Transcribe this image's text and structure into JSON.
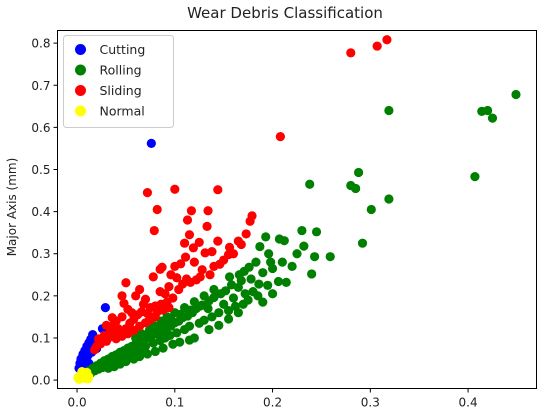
{
  "chart_data": {
    "type": "scatter",
    "title": "Wear Debris Classification",
    "xlabel": "",
    "ylabel": "Major Axis (mm)",
    "xlim": [
      -0.02,
      0.47
    ],
    "ylim": [
      -0.02,
      0.83
    ],
    "xticks": [
      0.0,
      0.1,
      0.2,
      0.3,
      0.4
    ],
    "xtick_labels": [
      "0.0",
      "0.1",
      "0.2",
      "0.3",
      "0.4"
    ],
    "yticks": [
      0.0,
      0.1,
      0.2,
      0.3,
      0.4,
      0.5,
      0.6,
      0.7,
      0.8
    ],
    "ytick_labels": [
      "0.0",
      "0.1",
      "0.2",
      "0.3",
      "0.4",
      "0.5",
      "0.6",
      "0.7",
      "0.8"
    ],
    "grid": false,
    "legend": "top-left",
    "series": [
      {
        "name": "Cutting",
        "color": "#0000ff",
        "points": [
          [
            0.076,
            0.562
          ],
          [
            0.029,
            0.172
          ],
          [
            0.026,
            0.122
          ],
          [
            0.016,
            0.108
          ],
          [
            0.014,
            0.097
          ],
          [
            0.012,
            0.088
          ],
          [
            0.018,
            0.092
          ],
          [
            0.01,
            0.08
          ],
          [
            0.008,
            0.07
          ],
          [
            0.006,
            0.061
          ],
          [
            0.004,
            0.05
          ],
          [
            0.011,
            0.058
          ],
          [
            0.003,
            0.04
          ],
          [
            0.007,
            0.045
          ],
          [
            0.02,
            0.075
          ],
          [
            0.015,
            0.066
          ],
          [
            0.009,
            0.052
          ],
          [
            0.013,
            0.074
          ],
          [
            0.005,
            0.032
          ],
          [
            0.017,
            0.082
          ],
          [
            0.002,
            0.028
          ],
          [
            0.022,
            0.09
          ],
          [
            0.012,
            0.04
          ]
        ]
      },
      {
        "name": "Rolling",
        "color": "#008000",
        "points": [
          [
            0.449,
            0.678
          ],
          [
            0.414,
            0.638
          ],
          [
            0.42,
            0.64
          ],
          [
            0.425,
            0.622
          ],
          [
            0.407,
            0.483
          ],
          [
            0.319,
            0.64
          ],
          [
            0.319,
            0.43
          ],
          [
            0.288,
            0.493
          ],
          [
            0.28,
            0.462
          ],
          [
            0.285,
            0.455
          ],
          [
            0.301,
            0.405
          ],
          [
            0.292,
            0.325
          ],
          [
            0.238,
            0.465
          ],
          [
            0.245,
            0.352
          ],
          [
            0.23,
            0.355
          ],
          [
            0.259,
            0.293
          ],
          [
            0.243,
            0.293
          ],
          [
            0.24,
            0.252
          ],
          [
            0.212,
            0.331
          ],
          [
            0.207,
            0.335
          ],
          [
            0.206,
            0.234
          ],
          [
            0.214,
            0.232
          ],
          [
            0.193,
            0.34
          ],
          [
            0.187,
            0.317
          ],
          [
            0.196,
            0.3
          ],
          [
            0.183,
            0.28
          ],
          [
            0.176,
            0.268
          ],
          [
            0.19,
            0.255
          ],
          [
            0.171,
            0.258
          ],
          [
            0.168,
            0.236
          ],
          [
            0.165,
            0.22
          ],
          [
            0.158,
            0.226
          ],
          [
            0.152,
            0.212
          ],
          [
            0.147,
            0.205
          ],
          [
            0.14,
            0.196
          ],
          [
            0.135,
            0.188
          ],
          [
            0.128,
            0.178
          ],
          [
            0.122,
            0.17
          ],
          [
            0.118,
            0.16
          ],
          [
            0.113,
            0.152
          ],
          [
            0.108,
            0.148
          ],
          [
            0.104,
            0.14
          ],
          [
            0.1,
            0.136
          ],
          [
            0.096,
            0.128
          ],
          [
            0.092,
            0.124
          ],
          [
            0.088,
            0.118
          ],
          [
            0.084,
            0.112
          ],
          [
            0.08,
            0.11
          ],
          [
            0.076,
            0.104
          ],
          [
            0.072,
            0.1
          ],
          [
            0.068,
            0.094
          ],
          [
            0.064,
            0.09
          ],
          [
            0.06,
            0.086
          ],
          [
            0.056,
            0.08
          ],
          [
            0.052,
            0.076
          ],
          [
            0.048,
            0.07
          ],
          [
            0.044,
            0.066
          ],
          [
            0.04,
            0.06
          ],
          [
            0.036,
            0.056
          ],
          [
            0.032,
            0.05
          ],
          [
            0.028,
            0.046
          ],
          [
            0.024,
            0.04
          ],
          [
            0.02,
            0.034
          ],
          [
            0.016,
            0.028
          ],
          [
            0.012,
            0.022
          ],
          [
            0.008,
            0.016
          ],
          [
            0.005,
            0.01
          ],
          [
            0.15,
            0.18
          ],
          [
            0.16,
            0.195
          ],
          [
            0.172,
            0.205
          ],
          [
            0.18,
            0.21
          ],
          [
            0.175,
            0.19
          ],
          [
            0.162,
            0.175
          ],
          [
            0.155,
            0.165
          ],
          [
            0.145,
            0.16
          ],
          [
            0.138,
            0.15
          ],
          [
            0.13,
            0.142
          ],
          [
            0.125,
            0.135
          ],
          [
            0.115,
            0.128
          ],
          [
            0.11,
            0.12
          ],
          [
            0.102,
            0.112
          ],
          [
            0.095,
            0.106
          ],
          [
            0.09,
            0.1
          ],
          [
            0.085,
            0.094
          ],
          [
            0.078,
            0.088
          ],
          [
            0.07,
            0.08
          ],
          [
            0.066,
            0.074
          ],
          [
            0.062,
            0.07
          ],
          [
            0.058,
            0.064
          ],
          [
            0.054,
            0.06
          ],
          [
            0.05,
            0.056
          ],
          [
            0.046,
            0.052
          ],
          [
            0.042,
            0.046
          ],
          [
            0.038,
            0.042
          ],
          [
            0.034,
            0.038
          ],
          [
            0.03,
            0.034
          ],
          [
            0.026,
            0.03
          ],
          [
            0.022,
            0.026
          ],
          [
            0.018,
            0.022
          ],
          [
            0.014,
            0.016
          ],
          [
            0.12,
            0.1
          ],
          [
            0.135,
            0.12
          ],
          [
            0.145,
            0.13
          ],
          [
            0.155,
            0.145
          ],
          [
            0.165,
            0.16
          ],
          [
            0.185,
            0.2
          ],
          [
            0.195,
            0.225
          ],
          [
            0.2,
            0.205
          ],
          [
            0.17,
            0.18
          ],
          [
            0.19,
            0.185
          ],
          [
            0.115,
            0.095
          ],
          [
            0.105,
            0.09
          ],
          [
            0.098,
            0.085
          ],
          [
            0.088,
            0.076
          ],
          [
            0.08,
            0.068
          ],
          [
            0.072,
            0.062
          ],
          [
            0.064,
            0.056
          ],
          [
            0.058,
            0.05
          ],
          [
            0.05,
            0.044
          ],
          [
            0.044,
            0.038
          ],
          [
            0.038,
            0.032
          ],
          [
            0.032,
            0.028
          ],
          [
            0.14,
            0.215
          ],
          [
            0.13,
            0.2
          ],
          [
            0.12,
            0.186
          ],
          [
            0.11,
            0.172
          ],
          [
            0.1,
            0.16
          ],
          [
            0.092,
            0.15
          ],
          [
            0.086,
            0.14
          ],
          [
            0.078,
            0.13
          ],
          [
            0.156,
            0.245
          ],
          [
            0.166,
            0.25
          ],
          [
            0.178,
            0.24
          ],
          [
            0.186,
            0.228
          ],
          [
            0.2,
            0.265
          ],
          [
            0.22,
            0.27
          ],
          [
            0.225,
            0.3
          ],
          [
            0.21,
            0.28
          ],
          [
            0.198,
            0.28
          ],
          [
            0.232,
            0.318
          ],
          [
            0.06,
            0.1
          ],
          [
            0.066,
            0.11
          ],
          [
            0.074,
            0.118
          ],
          [
            0.082,
            0.126
          ],
          [
            0.09,
            0.134
          ],
          [
            0.096,
            0.144
          ],
          [
            0.106,
            0.156
          ],
          [
            0.116,
            0.166
          ],
          [
            0.126,
            0.176
          ],
          [
            0.134,
            0.17
          ]
        ]
      },
      {
        "name": "Sliding",
        "color": "#ff0000",
        "points": [
          [
            0.317,
            0.808
          ],
          [
            0.307,
            0.793
          ],
          [
            0.28,
            0.777
          ],
          [
            0.208,
            0.578
          ],
          [
            0.072,
            0.445
          ],
          [
            0.1,
            0.453
          ],
          [
            0.117,
            0.402
          ],
          [
            0.144,
            0.452
          ],
          [
            0.082,
            0.405
          ],
          [
            0.133,
            0.365
          ],
          [
            0.119,
            0.314
          ],
          [
            0.113,
            0.38
          ],
          [
            0.134,
            0.402
          ],
          [
            0.111,
            0.292
          ],
          [
            0.11,
            0.325
          ],
          [
            0.125,
            0.327
          ],
          [
            0.131,
            0.302
          ],
          [
            0.179,
            0.39
          ],
          [
            0.177,
            0.377
          ],
          [
            0.173,
            0.347
          ],
          [
            0.144,
            0.33
          ],
          [
            0.138,
            0.305
          ],
          [
            0.115,
            0.345
          ],
          [
            0.079,
            0.355
          ],
          [
            0.078,
            0.245
          ],
          [
            0.087,
            0.268
          ],
          [
            0.085,
            0.263
          ],
          [
            0.096,
            0.25
          ],
          [
            0.1,
            0.27
          ],
          [
            0.106,
            0.276
          ],
          [
            0.102,
            0.243
          ],
          [
            0.12,
            0.28
          ],
          [
            0.128,
            0.262
          ],
          [
            0.14,
            0.27
          ],
          [
            0.136,
            0.25
          ],
          [
            0.05,
            0.231
          ],
          [
            0.06,
            0.2
          ],
          [
            0.064,
            0.215
          ],
          [
            0.068,
            0.18
          ],
          [
            0.07,
            0.192
          ],
          [
            0.075,
            0.172
          ],
          [
            0.08,
            0.176
          ],
          [
            0.085,
            0.21
          ],
          [
            0.09,
            0.205
          ],
          [
            0.094,
            0.222
          ],
          [
            0.048,
            0.182
          ],
          [
            0.052,
            0.168
          ],
          [
            0.056,
            0.16
          ],
          [
            0.046,
            0.15
          ],
          [
            0.04,
            0.14
          ],
          [
            0.042,
            0.122
          ],
          [
            0.038,
            0.108
          ],
          [
            0.036,
            0.128
          ],
          [
            0.034,
            0.118
          ],
          [
            0.032,
            0.1
          ],
          [
            0.03,
            0.092
          ],
          [
            0.028,
            0.106
          ],
          [
            0.026,
            0.096
          ],
          [
            0.024,
            0.086
          ],
          [
            0.044,
            0.112
          ],
          [
            0.05,
            0.122
          ],
          [
            0.054,
            0.135
          ],
          [
            0.058,
            0.144
          ],
          [
            0.062,
            0.155
          ],
          [
            0.066,
            0.162
          ],
          [
            0.072,
            0.158
          ],
          [
            0.076,
            0.15
          ],
          [
            0.082,
            0.162
          ],
          [
            0.086,
            0.18
          ],
          [
            0.092,
            0.185
          ],
          [
            0.098,
            0.195
          ],
          [
            0.104,
            0.215
          ],
          [
            0.108,
            0.228
          ],
          [
            0.112,
            0.24
          ],
          [
            0.116,
            0.232
          ],
          [
            0.122,
            0.238
          ],
          [
            0.126,
            0.245
          ],
          [
            0.146,
            0.275
          ],
          [
            0.15,
            0.285
          ],
          [
            0.155,
            0.298
          ],
          [
            0.16,
            0.3
          ],
          [
            0.165,
            0.33
          ],
          [
            0.168,
            0.322
          ],
          [
            0.156,
            0.315
          ],
          [
            0.046,
            0.2
          ],
          [
            0.036,
            0.148
          ],
          [
            0.03,
            0.13
          ],
          [
            0.022,
            0.098
          ],
          [
            0.02,
            0.08
          ],
          [
            0.018,
            0.072
          ],
          [
            0.04,
            0.098
          ],
          [
            0.046,
            0.104
          ],
          [
            0.052,
            0.11
          ],
          [
            0.058,
            0.118
          ],
          [
            0.064,
            0.128
          ],
          [
            0.07,
            0.136
          ],
          [
            0.074,
            0.142
          ],
          [
            0.08,
            0.15
          ],
          [
            0.088,
            0.166
          ],
          [
            0.094,
            0.172
          ]
        ]
      },
      {
        "name": "Normal",
        "color": "#ffff00",
        "points": [
          [
            0.01,
            0.018
          ],
          [
            0.012,
            0.008
          ],
          [
            0.006,
            0.012
          ],
          [
            0.004,
            0.005
          ],
          [
            0.008,
            0.004
          ],
          [
            0.002,
            0.002
          ],
          [
            0.009,
            0.014
          ],
          [
            0.005,
            0.02
          ],
          [
            0.003,
            0.01
          ],
          [
            0.011,
            0.003
          ],
          [
            0.007,
            0.008
          ],
          [
            0.001,
            0.006
          ]
        ]
      }
    ]
  }
}
